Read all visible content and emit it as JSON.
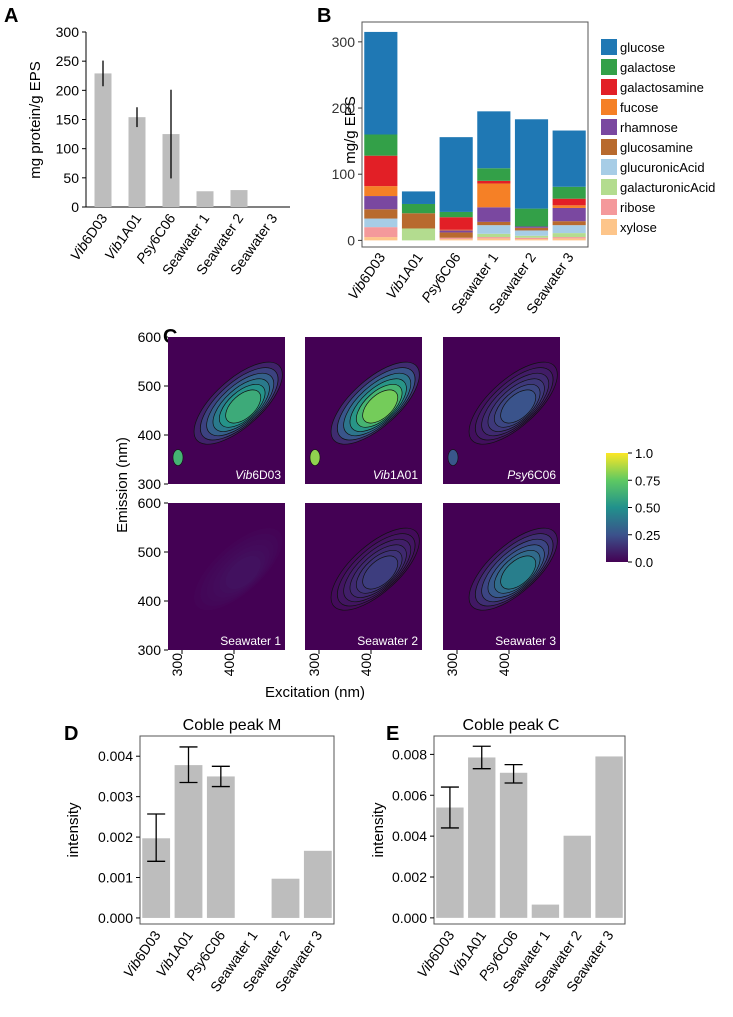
{
  "chart_data": [
    {
      "panel": "A",
      "type": "bar",
      "ylabel": "mg protein/g EPS",
      "ylim": [
        0,
        300
      ],
      "yticks": [
        0,
        50,
        100,
        150,
        200,
        250,
        300
      ],
      "categories": [
        {
          "italic": "Vib",
          "rest": "6D03"
        },
        {
          "italic": "Vib",
          "rest": "1A01"
        },
        {
          "italic": "Psy",
          "rest": "6C06"
        },
        {
          "italic": "",
          "rest": "Seawater 1"
        },
        {
          "italic": "",
          "rest": "Seawater 2"
        },
        {
          "italic": "",
          "rest": "Seawater 3"
        }
      ],
      "values": [
        229,
        154,
        125,
        27,
        29,
        0
      ],
      "err_low": [
        207,
        137,
        49,
        null,
        null,
        null
      ],
      "err_high": [
        251,
        171,
        201,
        null,
        null,
        null
      ],
      "bar_color": "#bdbdbd"
    },
    {
      "panel": "B",
      "type": "bar",
      "stacked": true,
      "ylabel": "mg/g EPS",
      "ylim": [
        -10,
        330
      ],
      "yticks": [
        0,
        100,
        200,
        300
      ],
      "categories": [
        {
          "italic": "Vib",
          "rest": "6D03"
        },
        {
          "italic": "Vib",
          "rest": "1A01"
        },
        {
          "italic": "Psy",
          "rest": "6C06"
        },
        {
          "italic": "",
          "rest": "Seawater 1"
        },
        {
          "italic": "",
          "rest": "Seawater 2"
        },
        {
          "italic": "",
          "rest": "Seawater 3"
        }
      ],
      "legend_position": "right",
      "series": [
        {
          "name": "xylose",
          "color": "#fdc58a",
          "values": [
            5,
            0,
            2,
            3,
            2,
            3
          ]
        },
        {
          "name": "ribose",
          "color": "#f4999b",
          "values": [
            15,
            0,
            2,
            2,
            2,
            2
          ]
        },
        {
          "name": "galacturonicAcid",
          "color": "#b3dc8f",
          "values": [
            0,
            18,
            0,
            5,
            3,
            6
          ]
        },
        {
          "name": "glucuronicAcid",
          "color": "#a7cde6",
          "values": [
            13,
            0,
            0,
            13,
            8,
            12
          ]
        },
        {
          "name": "glucosamine",
          "color": "#b86a2e",
          "values": [
            14,
            23,
            8,
            5,
            4,
            6
          ]
        },
        {
          "name": "rhamnose",
          "color": "#7a48a0",
          "values": [
            20,
            0,
            3,
            22,
            2,
            20
          ]
        },
        {
          "name": "fucose",
          "color": "#f58026",
          "values": [
            15,
            0,
            1,
            36,
            0,
            4
          ]
        },
        {
          "name": "galactosamine",
          "color": "#e21f26",
          "values": [
            46,
            0,
            19,
            4,
            0,
            10
          ]
        },
        {
          "name": "galactose",
          "color": "#33a048",
          "values": [
            32,
            14,
            8,
            19,
            27,
            18
          ]
        },
        {
          "name": "glucose",
          "color": "#1f78b4",
          "values": [
            155,
            19,
            113,
            86,
            135,
            85
          ]
        }
      ]
    },
    {
      "panel": "C",
      "type": "heatmap",
      "xlabel": "Excitation (nm)",
      "ylabel": "Emission (nm)",
      "xticks": [
        300,
        400
      ],
      "yticks": [
        300,
        400,
        500,
        600
      ],
      "colorbar_ticks": [
        "1.0",
        "0.75",
        "0.50",
        "0.25",
        "0.0"
      ],
      "colorbar_range": [
        0,
        1
      ],
      "panels": [
        {
          "label_italic": "Vib",
          "label_rest": "6D03",
          "peak": 0.72
        },
        {
          "label_italic": "Vib",
          "label_rest": "1A01",
          "peak": 0.92
        },
        {
          "label_italic": "Psy",
          "label_rest": "6C06",
          "peak": 0.3
        },
        {
          "label_italic": "",
          "label_rest": "Seawater 1",
          "peak": 0.06
        },
        {
          "label_italic": "",
          "label_rest": "Seawater 2",
          "peak": 0.22
        },
        {
          "label_italic": "",
          "label_rest": "Seawater 3",
          "peak": 0.5
        }
      ]
    },
    {
      "panel": "D",
      "type": "bar",
      "title": "Coble peak M",
      "ylabel": "intensity",
      "ylim": [
        -0.00015,
        0.0045
      ],
      "yticks": [
        "0.000",
        "0.001",
        "0.002",
        "0.003",
        "0.004"
      ],
      "ytick_values": [
        0,
        0.001,
        0.002,
        0.003,
        0.004
      ],
      "categories": [
        {
          "italic": "Vib",
          "rest": "6D03"
        },
        {
          "italic": "Vib",
          "rest": "1A01"
        },
        {
          "italic": "Psy",
          "rest": "6C06"
        },
        {
          "italic": "",
          "rest": "Seawater 1"
        },
        {
          "italic": "",
          "rest": "Seawater 2"
        },
        {
          "italic": "",
          "rest": "Seawater 3"
        }
      ],
      "values": [
        0.00197,
        0.00378,
        0.0035,
        0,
        0.00097,
        0.00166
      ],
      "err_low": [
        0.0014,
        0.00335,
        0.00325,
        null,
        null,
        null
      ],
      "err_high": [
        0.00257,
        0.00423,
        0.00375,
        null,
        null,
        null
      ],
      "bar_color": "#bdbdbd"
    },
    {
      "panel": "E",
      "type": "bar",
      "title": "Coble peak C",
      "ylabel": "intensity",
      "ylim": [
        -0.0003,
        0.0089
      ],
      "yticks": [
        "0.000",
        "0.002",
        "0.004",
        "0.006",
        "0.008"
      ],
      "ytick_values": [
        0,
        0.002,
        0.004,
        0.006,
        0.008
      ],
      "categories": [
        {
          "italic": "Vib",
          "rest": "6D03"
        },
        {
          "italic": "Vib",
          "rest": "1A01"
        },
        {
          "italic": "Psy",
          "rest": "6C06"
        },
        {
          "italic": "",
          "rest": "Seawater 1"
        },
        {
          "italic": "",
          "rest": "Seawater 2"
        },
        {
          "italic": "",
          "rest": "Seawater 3"
        }
      ],
      "values": [
        0.0054,
        0.00785,
        0.0071,
        0.00065,
        0.00402,
        0.0079
      ],
      "err_low": [
        0.0044,
        0.0073,
        0.0066,
        null,
        null,
        null
      ],
      "err_high": [
        0.0064,
        0.0084,
        0.0075,
        null,
        null,
        null
      ],
      "bar_color": "#bdbdbd"
    }
  ],
  "panel_letters": [
    "A",
    "B",
    "C",
    "D",
    "E"
  ]
}
